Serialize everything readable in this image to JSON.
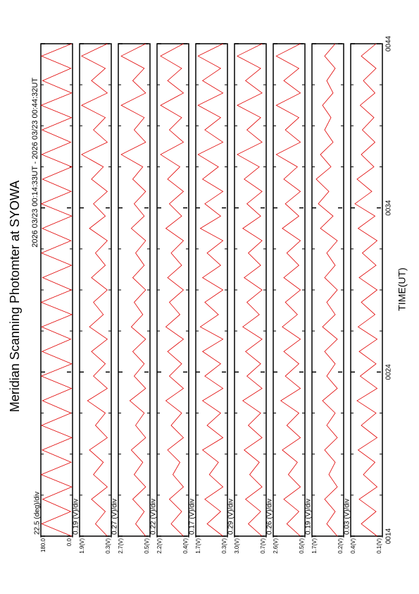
{
  "header": {
    "title": "Meridian Scanning Photomter at SYOWA",
    "subtitle": "2026 03/23 00:14:33UT - 2026 03/23 00:44:32UT"
  },
  "time_axis": {
    "xlabel": "TIME(UT)",
    "xlim": [
      14,
      44
    ],
    "xticks": [
      {
        "value": 14,
        "label": "0014"
      },
      {
        "value": 24,
        "label": "0024"
      },
      {
        "value": 34,
        "label": "0034"
      },
      {
        "value": 44,
        "label": "0044"
      }
    ],
    "minor_ticks": [
      16.5,
      19,
      21.5,
      26.5,
      29,
      31.5,
      36.5,
      39,
      41.5
    ],
    "x": [
      14,
      14.75,
      15.5,
      16.25,
      17,
      17.75,
      18.5,
      19.25,
      20,
      20.75,
      21.5,
      22.25,
      23,
      23.75,
      24.5,
      25.25,
      26,
      26.75,
      27.5,
      28.25,
      29,
      29.75,
      30.5,
      31.25,
      32,
      32.75,
      33.5,
      34.25,
      35,
      35.75,
      36.5,
      37.25,
      38,
      38.75,
      39.5,
      40.25,
      41,
      41.75,
      42.5,
      43.25,
      44
    ]
  },
  "chart_data": [
    {
      "type": "line",
      "scale_label": "22.5 (deg)/div",
      "color": "#e00000",
      "ylim": [
        0,
        180
      ],
      "yticks": [
        {
          "value": 180,
          "label": "180.0"
        },
        {
          "value": 0,
          "label": "0.0"
        }
      ],
      "values": [
        5,
        175,
        10,
        170,
        5,
        178,
        8,
        172,
        4,
        176,
        9,
        171,
        6,
        177,
        5,
        173,
        10,
        175,
        4,
        178,
        7,
        170,
        6,
        176,
        9,
        172,
        5,
        177,
        8,
        171,
        4,
        175,
        10,
        173,
        6,
        178,
        5,
        170,
        9,
        176,
        5
      ]
    },
    {
      "type": "line",
      "scale_label": "0.19 (V)/div",
      "color": "#e00000",
      "ylim": [
        0.3,
        1.9
      ],
      "yticks": [
        {
          "value": 1.9,
          "label": "1.9(V)"
        },
        {
          "value": 0.3,
          "label": "0.3(V)"
        }
      ],
      "values": [
        0.5,
        1.1,
        0.6,
        1.3,
        0.5,
        1.2,
        0.7,
        1.4,
        0.5,
        1.1,
        0.6,
        1.5,
        0.5,
        1.2,
        0.6,
        1.3,
        0.5,
        1.4,
        0.7,
        1.2,
        0.5,
        1.3,
        0.6,
        1.1,
        0.5,
        1.4,
        0.6,
        1.2,
        0.5,
        1.3,
        0.7,
        1.8,
        0.5,
        1.2,
        0.6,
        1.8,
        0.5,
        1.3,
        0.6,
        1.8,
        0.5
      ]
    },
    {
      "type": "line",
      "scale_label": "0.27 (V)/div",
      "color": "#e00000",
      "ylim": [
        0.5,
        2.7
      ],
      "yticks": [
        {
          "value": 2.7,
          "label": "2.7(V)"
        },
        {
          "value": 0.5,
          "label": "0.5(V)"
        }
      ],
      "values": [
        0.8,
        1.5,
        0.9,
        1.7,
        0.8,
        1.6,
        1.0,
        1.8,
        0.8,
        1.5,
        0.9,
        1.9,
        0.8,
        1.6,
        0.9,
        1.7,
        0.8,
        1.8,
        1.0,
        1.6,
        0.8,
        1.7,
        0.9,
        1.5,
        0.8,
        1.8,
        0.9,
        1.6,
        0.8,
        1.7,
        1.0,
        2.5,
        0.8,
        1.6,
        0.9,
        2.5,
        0.8,
        1.7,
        0.9,
        2.5,
        0.8
      ]
    },
    {
      "type": "line",
      "scale_label": "0.22 (V)/div",
      "color": "#e00000",
      "ylim": [
        0.4,
        2.2
      ],
      "yticks": [
        {
          "value": 2.2,
          "label": "2.2(V)"
        },
        {
          "value": 0.4,
          "label": "0.4(V)"
        }
      ],
      "values": [
        0.7,
        1.4,
        0.8,
        1.5,
        0.7,
        1.3,
        0.9,
        1.6,
        0.7,
        1.4,
        0.8,
        1.7,
        0.7,
        1.5,
        0.8,
        1.6,
        0.7,
        1.7,
        0.9,
        1.5,
        0.7,
        1.6,
        0.8,
        1.4,
        0.7,
        1.7,
        0.8,
        1.5,
        0.7,
        1.6,
        0.9,
        2.0,
        0.7,
        1.5,
        0.8,
        2.0,
        0.7,
        1.6,
        0.8,
        2.0,
        0.7
      ]
    },
    {
      "type": "line",
      "scale_label": "0.17 (V)/div",
      "color": "#e00000",
      "ylim": [
        0.3,
        1.7
      ],
      "yticks": [
        {
          "value": 1.7,
          "label": "1.7(V)"
        },
        {
          "value": 0.3,
          "label": "0.3(V)"
        }
      ],
      "values": [
        0.5,
        1.2,
        0.6,
        1.3,
        0.5,
        1.1,
        0.7,
        1.4,
        0.5,
        1.2,
        0.6,
        1.4,
        0.5,
        1.3,
        0.6,
        1.4,
        0.5,
        1.5,
        0.7,
        1.3,
        0.5,
        1.4,
        0.6,
        1.2,
        0.5,
        1.5,
        0.6,
        1.3,
        0.5,
        1.4,
        0.7,
        1.6,
        0.5,
        1.3,
        0.6,
        1.6,
        0.5,
        1.4,
        0.6,
        1.6,
        0.5
      ]
    },
    {
      "type": "line",
      "scale_label": "0.29 (V)/div",
      "color": "#e00000",
      "ylim": [
        0.7,
        3.0
      ],
      "yticks": [
        {
          "value": 3.0,
          "label": "3.0(V)"
        },
        {
          "value": 0.7,
          "label": "0.7(V)"
        }
      ],
      "values": [
        1.0,
        2.0,
        1.1,
        2.2,
        1.0,
        1.9,
        1.2,
        2.3,
        1.0,
        2.0,
        1.1,
        2.4,
        1.0,
        2.1,
        1.1,
        2.2,
        1.0,
        2.4,
        1.2,
        2.1,
        1.0,
        2.3,
        1.1,
        2.0,
        1.0,
        2.4,
        1.1,
        2.1,
        1.0,
        2.3,
        1.2,
        2.8,
        1.0,
        2.1,
        1.1,
        2.8,
        1.0,
        2.2,
        1.1,
        2.8,
        1.0
      ]
    },
    {
      "type": "line",
      "scale_label": "0.26 (V)/div",
      "color": "#e00000",
      "ylim": [
        0.5,
        2.6
      ],
      "yticks": [
        {
          "value": 2.6,
          "label": "2.6(V)"
        },
        {
          "value": 0.5,
          "label": "0.5(V)"
        }
      ],
      "values": [
        0.8,
        1.7,
        0.9,
        1.9,
        0.8,
        1.6,
        1.0,
        2.0,
        0.8,
        1.7,
        0.9,
        2.1,
        0.8,
        1.8,
        0.9,
        1.9,
        0.8,
        2.0,
        1.0,
        1.8,
        0.8,
        1.9,
        0.9,
        1.7,
        0.8,
        2.0,
        0.9,
        1.8,
        0.8,
        1.9,
        1.0,
        2.4,
        0.8,
        1.8,
        0.9,
        2.4,
        0.8,
        1.9,
        0.9,
        2.4,
        0.8
      ]
    },
    {
      "type": "line",
      "scale_label": "0.19 (V)/div",
      "color": "#e00000",
      "ylim": [
        0.2,
        1.7
      ],
      "yticks": [
        {
          "value": 1.7,
          "label": "1.7(V)"
        },
        {
          "value": 0.2,
          "label": "0.2(V)"
        }
      ],
      "values": [
        0.5,
        1.0,
        0.6,
        1.1,
        0.5,
        0.9,
        0.6,
        1.1,
        0.5,
        1.0,
        0.6,
        1.2,
        0.5,
        1.0,
        0.6,
        1.1,
        0.5,
        1.2,
        0.6,
        1.0,
        0.5,
        1.1,
        0.6,
        1.0,
        0.5,
        1.3,
        0.7,
        1.4,
        0.9,
        1.5,
        0.8,
        1.3,
        0.7,
        1.1,
        0.8,
        1.2,
        0.7,
        1.0,
        0.6,
        1.1,
        0.6
      ]
    },
    {
      "type": "line",
      "scale_label": "0.03 (V)/div",
      "color": "#e00000",
      "ylim": [
        0.1,
        0.4
      ],
      "yticks": [
        {
          "value": 0.4,
          "label": "0.4(V)"
        },
        {
          "value": 0.1,
          "label": "0.1(V)"
        }
      ],
      "values": [
        0.15,
        0.3,
        0.16,
        0.32,
        0.15,
        0.28,
        0.17,
        0.33,
        0.15,
        0.3,
        0.16,
        0.34,
        0.15,
        0.31,
        0.16,
        0.32,
        0.15,
        0.33,
        0.17,
        0.3,
        0.15,
        0.32,
        0.16,
        0.29,
        0.15,
        0.33,
        0.17,
        0.36,
        0.2,
        0.34,
        0.18,
        0.3,
        0.17,
        0.29,
        0.18,
        0.31,
        0.17,
        0.28,
        0.16,
        0.3,
        0.16
      ]
    }
  ]
}
